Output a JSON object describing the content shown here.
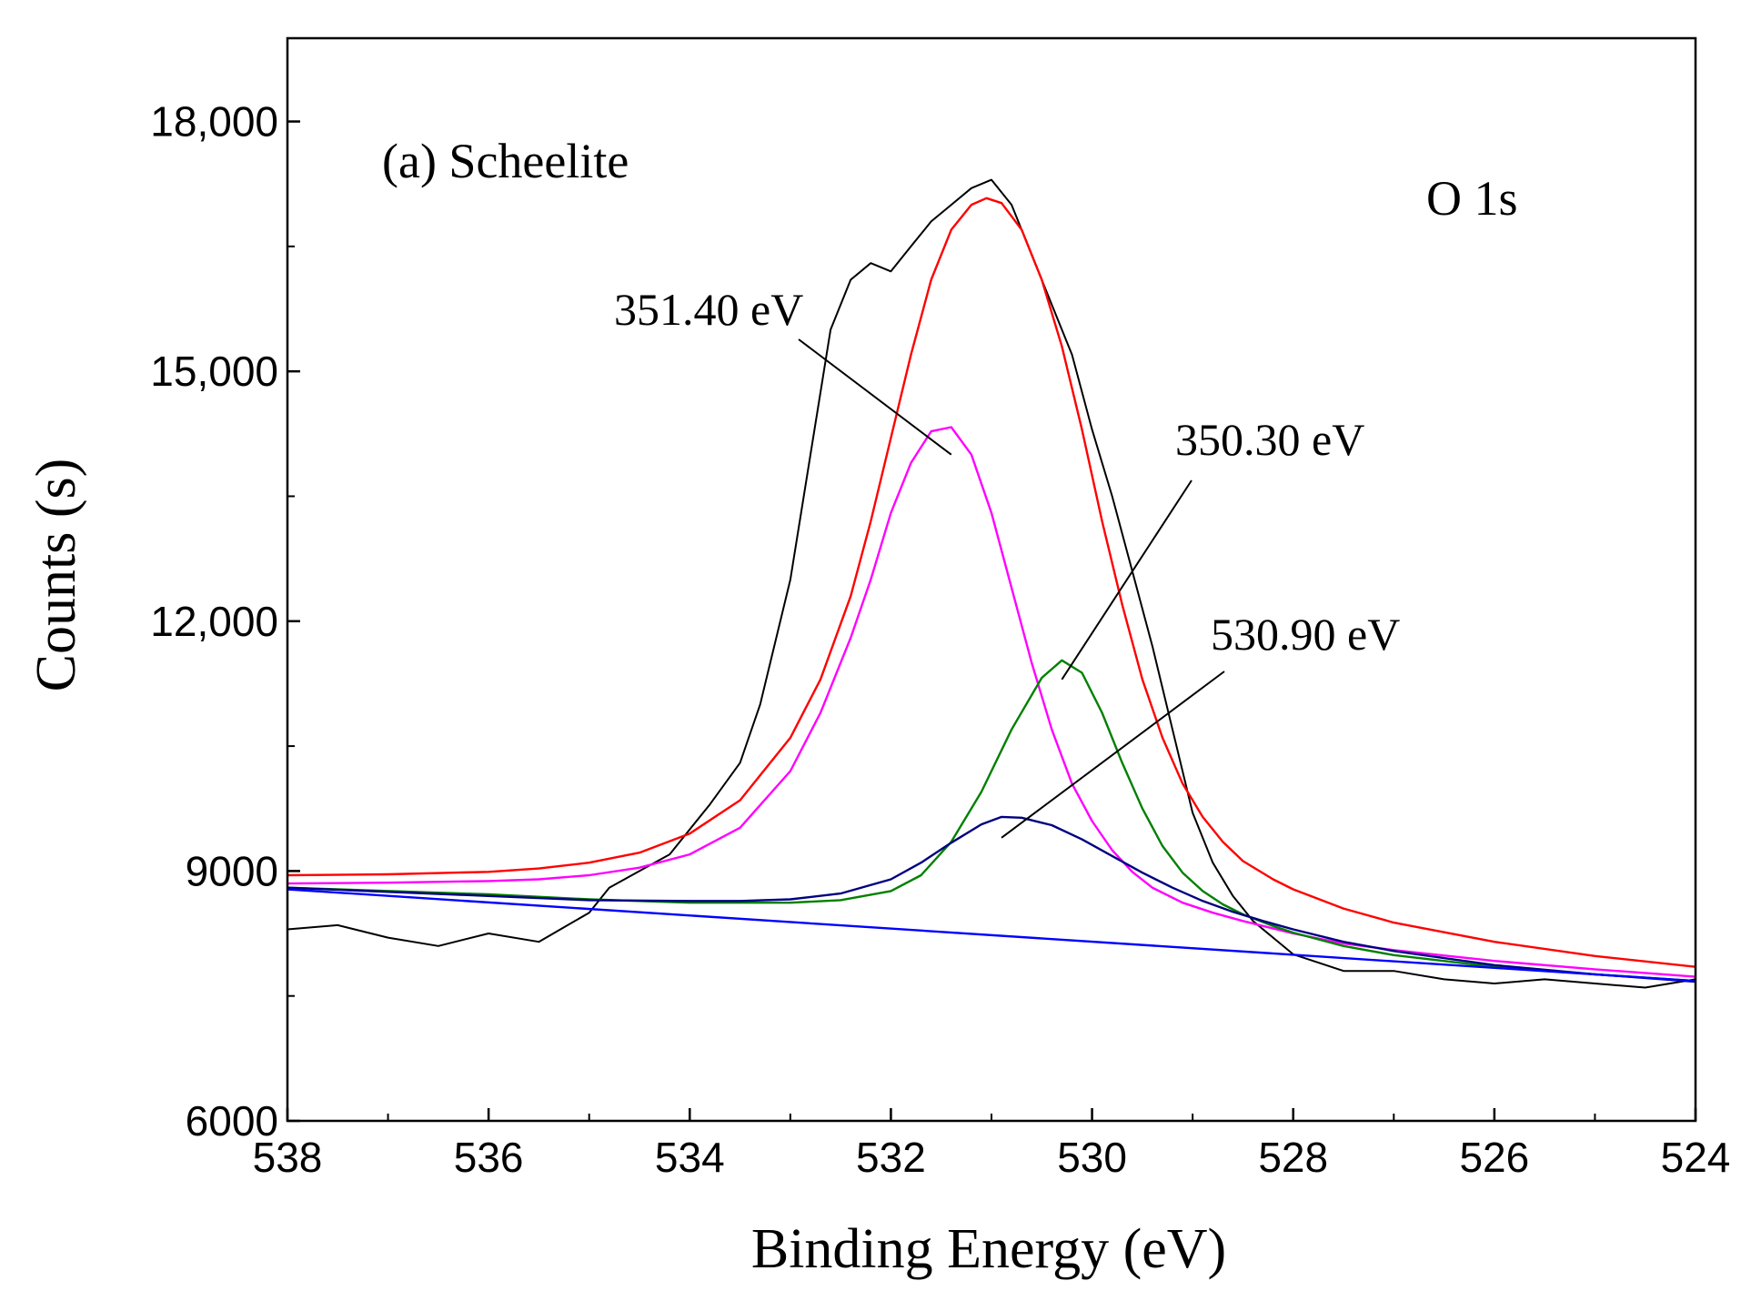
{
  "chart_data": {
    "type": "line",
    "title": "",
    "panel_label": "(a)  Scheelite",
    "corner_label": "O 1s",
    "xlabel": "Binding Energy (eV)",
    "ylabel": "Counts (s)",
    "x_reversed": true,
    "xlim": [
      538,
      524
    ],
    "ylim": [
      6000,
      19000
    ],
    "x_ticks": [
      538,
      536,
      534,
      532,
      530,
      528,
      526,
      524
    ],
    "x_tick_labels": [
      "538",
      "536",
      "534",
      "532",
      "530",
      "528",
      "526",
      "524"
    ],
    "y_ticks": [
      6000,
      9000,
      12000,
      15000,
      18000
    ],
    "y_tick_labels": [
      "6000",
      "9000",
      "12,000",
      "15,000",
      "18,000"
    ],
    "grid": false,
    "legend": "none",
    "annotations": [
      {
        "text": "351.40 eV",
        "points_to_x": 531.4,
        "points_to_y": 14000
      },
      {
        "text": "350.30 eV",
        "points_to_x": 530.3,
        "points_to_y": 11300
      },
      {
        "text": "530.90 eV",
        "points_to_x": 530.9,
        "points_to_y": 9400
      }
    ],
    "series": [
      {
        "role": "raw",
        "color": "#000000",
        "x": [
          538,
          537.5,
          537,
          536.5,
          536,
          535.5,
          535,
          534.8,
          534.5,
          534.2,
          534,
          533.8,
          533.5,
          533.3,
          533,
          532.8,
          532.6,
          532.4,
          532.2,
          532,
          531.8,
          531.6,
          531.4,
          531.2,
          531,
          530.8,
          530.6,
          530.4,
          530.2,
          530,
          529.8,
          529.6,
          529.4,
          529.2,
          529,
          528.8,
          528.6,
          528.4,
          528.2,
          528,
          527.5,
          527,
          526.5,
          526,
          525.5,
          525,
          524.5,
          524
        ],
        "y": [
          8300,
          8350,
          8200,
          8100,
          8250,
          8150,
          8500,
          8800,
          9000,
          9200,
          9500,
          9800,
          10300,
          11000,
          12500,
          14000,
          15500,
          16100,
          16300,
          16200,
          16500,
          16800,
          17000,
          17200,
          17300,
          17000,
          16400,
          15800,
          15200,
          14300,
          13500,
          12600,
          11700,
          10700,
          9700,
          9100,
          8700,
          8400,
          8200,
          8000,
          7800,
          7800,
          7700,
          7650,
          7700,
          7650,
          7600,
          7700
        ]
      },
      {
        "role": "envelope",
        "color": "#ff0000",
        "x": [
          538,
          537,
          536,
          535.5,
          535,
          534.5,
          534,
          533.5,
          533,
          532.7,
          532.4,
          532.2,
          532,
          531.8,
          531.6,
          531.4,
          531.2,
          531.05,
          530.9,
          530.7,
          530.5,
          530.3,
          530.1,
          529.9,
          529.7,
          529.5,
          529.3,
          529.1,
          528.9,
          528.7,
          528.5,
          528.2,
          528,
          527.5,
          527,
          526,
          525,
          524
        ],
        "y": [
          8950,
          8960,
          8990,
          9030,
          9100,
          9220,
          9450,
          9850,
          10600,
          11300,
          12300,
          13200,
          14200,
          15200,
          16100,
          16700,
          17000,
          17080,
          17020,
          16700,
          16100,
          15300,
          14300,
          13200,
          12200,
          11300,
          10600,
          10050,
          9650,
          9350,
          9120,
          8900,
          8780,
          8550,
          8380,
          8150,
          7980,
          7850
        ]
      },
      {
        "role": "component",
        "label": "351.40 eV",
        "color": "#ff00ff",
        "x": [
          538,
          537,
          536,
          535.5,
          535,
          534.5,
          534,
          533.5,
          533,
          532.7,
          532.4,
          532.2,
          532,
          531.8,
          531.6,
          531.4,
          531.2,
          531,
          530.8,
          530.6,
          530.4,
          530.2,
          530,
          529.8,
          529.6,
          529.4,
          529.1,
          528.8,
          528.5,
          528,
          527.5,
          527,
          526,
          525,
          524
        ],
        "y": [
          8850,
          8860,
          8880,
          8900,
          8950,
          9040,
          9200,
          9520,
          10200,
          10900,
          11800,
          12500,
          13300,
          13900,
          14280,
          14330,
          14000,
          13300,
          12400,
          11500,
          10700,
          10050,
          9600,
          9250,
          8990,
          8800,
          8620,
          8500,
          8400,
          8250,
          8130,
          8050,
          7920,
          7820,
          7730
        ]
      },
      {
        "role": "component",
        "label": "350.30 eV",
        "color": "#008000",
        "x": [
          538,
          536,
          535,
          534,
          533,
          532.5,
          532,
          531.7,
          531.4,
          531.1,
          530.8,
          530.5,
          530.3,
          530.1,
          529.9,
          529.7,
          529.5,
          529.3,
          529.1,
          528.9,
          528.7,
          528.5,
          528.2,
          528,
          527.5,
          527,
          526,
          525,
          524
        ],
        "y": [
          8800,
          8720,
          8660,
          8620,
          8620,
          8650,
          8760,
          8950,
          9350,
          9950,
          10700,
          11320,
          11530,
          11380,
          10900,
          10300,
          9750,
          9300,
          8980,
          8760,
          8600,
          8480,
          8340,
          8260,
          8100,
          7990,
          7850,
          7760,
          7680
        ]
      },
      {
        "role": "component",
        "label": "530.90 eV",
        "color": "#000080",
        "x": [
          538,
          536,
          535,
          534,
          533.5,
          533,
          532.5,
          532,
          531.7,
          531.4,
          531.1,
          530.9,
          530.7,
          530.4,
          530.1,
          529.8,
          529.5,
          529.2,
          528.9,
          528.6,
          528.3,
          528,
          527.5,
          527,
          526,
          525,
          524
        ],
        "y": [
          8800,
          8700,
          8650,
          8640,
          8640,
          8660,
          8730,
          8900,
          9100,
          9340,
          9560,
          9650,
          9640,
          9550,
          9380,
          9180,
          8980,
          8800,
          8640,
          8510,
          8400,
          8300,
          8150,
          8040,
          7870,
          7760,
          7670
        ]
      },
      {
        "role": "background",
        "color": "#0000ff",
        "x": [
          538,
          524
        ],
        "y": [
          8780,
          7680
        ]
      }
    ]
  }
}
